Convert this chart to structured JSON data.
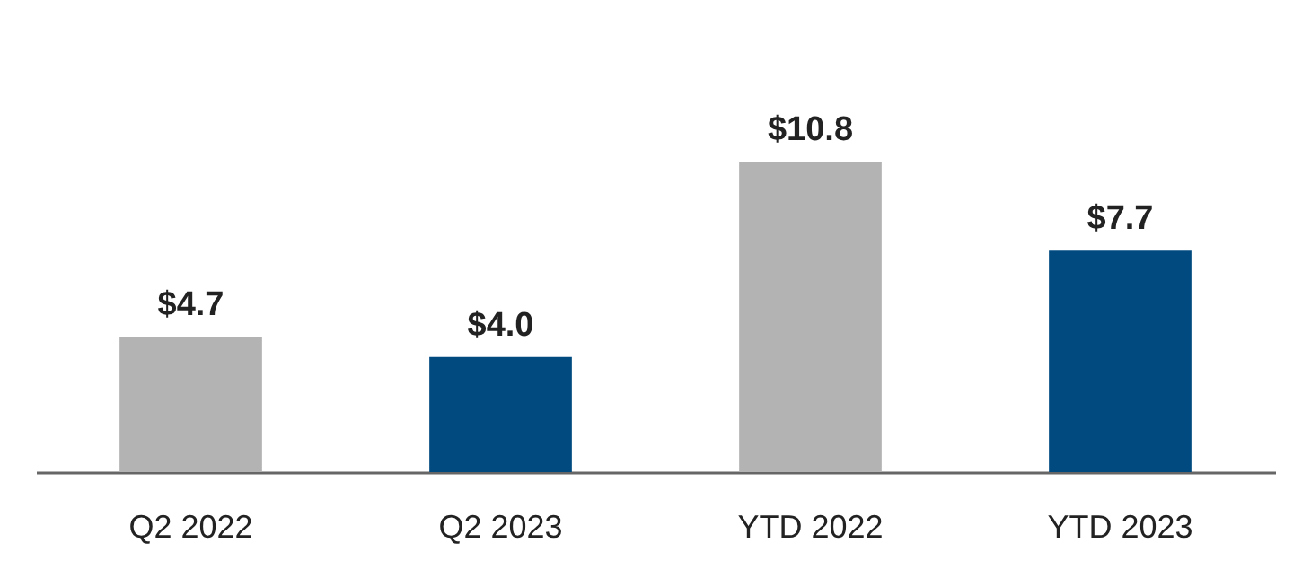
{
  "chart_data": {
    "type": "bar",
    "categories": [
      "Q2 2022",
      "Q2 2023",
      "YTD 2022",
      "YTD 2023"
    ],
    "values": [
      4.7,
      4.0,
      10.8,
      7.7
    ],
    "colors": [
      "#b3b3b3",
      "#004a80",
      "#b3b3b3",
      "#004a80"
    ],
    "value_labels": [
      "$4.7",
      "$4.0",
      "$10.8",
      "$7.7"
    ],
    "grid": false
  }
}
